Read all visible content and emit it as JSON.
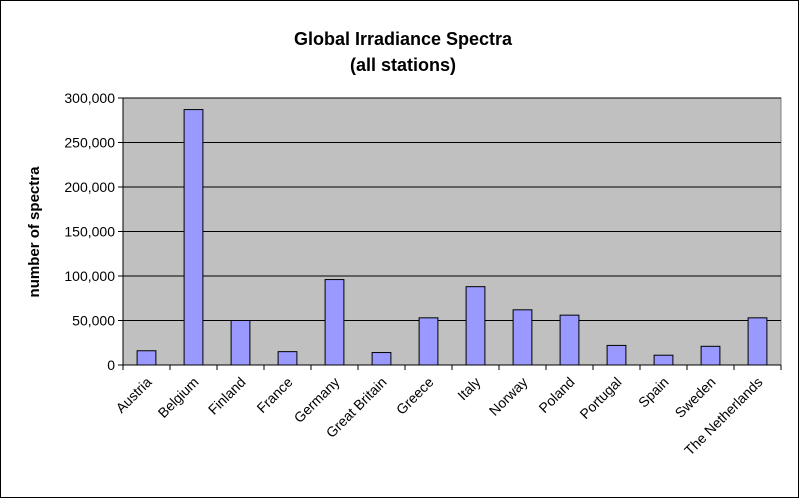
{
  "chart_data": {
    "type": "bar",
    "title": "Global Irradiance Spectra",
    "subtitle": "(all stations)",
    "xlabel": "",
    "ylabel": "number of spectra",
    "categories": [
      "Austria",
      "Belgium",
      "Finland",
      "France",
      "Germany",
      "Great Britain",
      "Greece",
      "Italy",
      "Norway",
      "Poland",
      "Portugal",
      "Spain",
      "Sweden",
      "The Netherlands"
    ],
    "values": [
      16000,
      287000,
      50000,
      15000,
      96000,
      14000,
      53000,
      88000,
      62000,
      56000,
      22000,
      11000,
      21000,
      53000
    ],
    "ylim": [
      0,
      300000
    ],
    "yticks": [
      0,
      50000,
      100000,
      150000,
      200000,
      250000,
      300000
    ],
    "ytick_labels": [
      "0",
      "50,000",
      "100,000",
      "150,000",
      "200,000",
      "250,000",
      "300,000"
    ],
    "grid": true,
    "legend": "none",
    "colors": {
      "bar_fill": "#9999ff",
      "bar_stroke": "#000000",
      "plot_background": "#c0c0c0",
      "gridline": "#000000",
      "figure_background": "#ffffff"
    }
  }
}
